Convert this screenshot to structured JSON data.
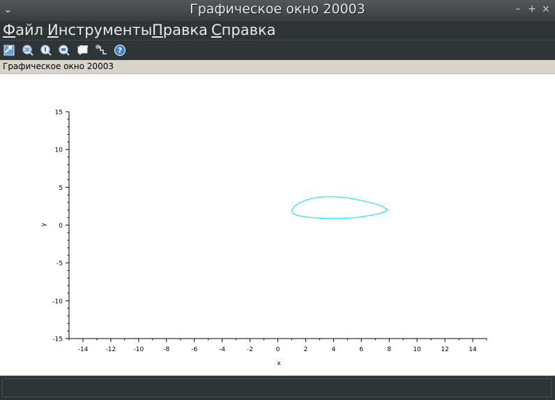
{
  "window": {
    "title": "Графическое окно 20003"
  },
  "menu": [
    {
      "mnemonic": "Ф",
      "rest": "айл"
    },
    {
      "mnemonic": "И",
      "rest": "нструменты"
    },
    {
      "mnemonic": "П",
      "rest": "равка"
    },
    {
      "mnemonic": "С",
      "rest": "правка"
    }
  ],
  "toolbar": {
    "icons": [
      "rotate-icon",
      "zoom-in-icon",
      "zoom-reset-icon",
      "zoom-out-icon",
      "datatip-icon",
      "editor-icon",
      "help-icon"
    ]
  },
  "tab": {
    "label": "Графическое окно 20003"
  },
  "chart_data": {
    "type": "line",
    "title": "",
    "xlabel": "x",
    "ylabel": "y",
    "xlim": [
      -15,
      15
    ],
    "ylim": [
      -15,
      15
    ],
    "xticks": [
      "-14",
      "-12",
      "-10",
      "-8",
      "-6",
      "-4",
      "-2",
      "0",
      "2",
      "4",
      "6",
      "8",
      "10",
      "12",
      "14"
    ],
    "yticks": [
      "15",
      "10",
      "5",
      "0",
      "-5",
      "-10",
      "-15"
    ],
    "grid": false,
    "colors": {
      "curve": "#00e5e5",
      "axis": "#000000"
    },
    "series": [
      {
        "x": [
          7.9,
          7.5,
          7.0,
          6.5,
          6.0,
          5.5,
          5.0,
          4.5,
          4.0,
          3.5,
          3.0,
          2.5,
          2.0,
          1.5,
          1.2,
          1.0,
          1.1,
          1.5,
          2.0,
          2.5,
          3.0,
          3.5,
          4.0,
          4.5,
          5.0,
          5.5,
          6.0,
          6.5,
          7.0,
          7.5,
          7.9
        ],
        "y": [
          2.0,
          2.5,
          2.8,
          3.05,
          3.25,
          3.45,
          3.6,
          3.7,
          3.75,
          3.75,
          3.7,
          3.55,
          3.3,
          2.9,
          2.5,
          2.0,
          1.5,
          1.25,
          1.1,
          1.0,
          0.95,
          0.9,
          0.9,
          0.9,
          0.95,
          1.0,
          1.1,
          1.25,
          1.4,
          1.65,
          2.0
        ]
      }
    ]
  }
}
